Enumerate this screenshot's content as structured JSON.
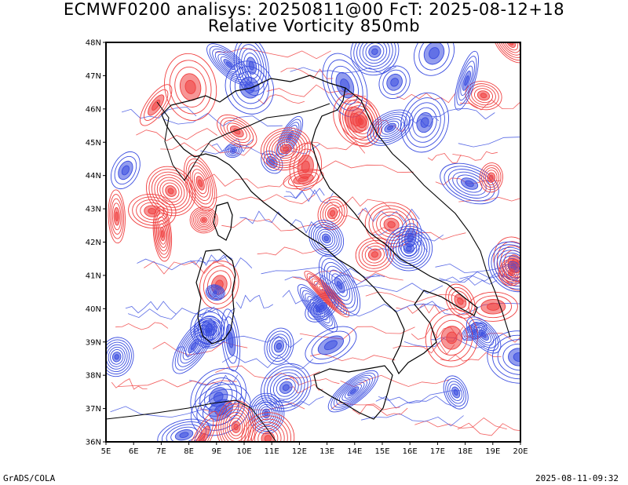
{
  "header": {
    "title_line1": "ECMWF0200 analisys: 20250811@00 FcT: 2025-08-12+18",
    "title_line2": "Relative Vorticity 850mb"
  },
  "map": {
    "lat_labels": [
      "48N",
      "47N",
      "46N",
      "45N",
      "44N",
      "43N",
      "42N",
      "41N",
      "40N",
      "39N",
      "38N",
      "37N",
      "36N"
    ],
    "lon_labels": [
      "5E",
      "6E",
      "7E",
      "8E",
      "9E",
      "10E",
      "11E",
      "12E",
      "13E",
      "14E",
      "15E",
      "16E",
      "17E",
      "18E",
      "19E",
      "20E"
    ],
    "lon_range": [
      5,
      20
    ],
    "lat_range": [
      36,
      48
    ],
    "colors": {
      "positive_contour": "#3a4de0",
      "negative_contour": "#f04040",
      "coastline": "#000000",
      "frame": "#000000"
    }
  },
  "footer": {
    "left": "GrADS/COLA",
    "right": "2025-08-11-09:32"
  }
}
